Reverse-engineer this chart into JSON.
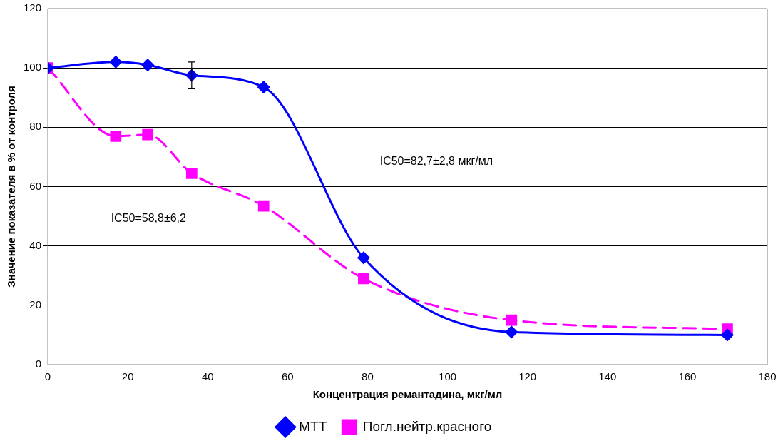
{
  "chart_data": {
    "type": "line",
    "xlabel": "Концентрация ремантадина, мкг/мл",
    "ylabel": "Значение показателя в % от контроля",
    "x": [
      0,
      17,
      25,
      36,
      54,
      79,
      116,
      170
    ],
    "series": [
      {
        "name": "МТТ",
        "color": "#0000ff",
        "values": [
          100,
          102,
          101,
          97.5,
          93.5,
          36,
          11,
          10
        ],
        "errors": [
          null,
          null,
          null,
          4.5,
          null,
          null,
          null,
          null
        ],
        "marker": "diamond",
        "line_style": "solid"
      },
      {
        "name": "Погл.нейтр.красного",
        "color": "#ff00ff",
        "values": [
          100,
          77,
          77.5,
          64.5,
          53.5,
          29,
          15,
          12
        ],
        "marker": "square",
        "line_style": "dashed"
      }
    ],
    "annotations": [
      "IC50=82,7±2,8 мкг/мл",
      "IC50=58,8±6,2"
    ],
    "xlim": [
      0,
      180
    ],
    "xticks": [
      0,
      20,
      40,
      60,
      80,
      100,
      120,
      140,
      160,
      180
    ],
    "ylim": [
      0,
      120
    ],
    "yticks": [
      0,
      20,
      40,
      60,
      80,
      100,
      120
    ],
    "grid": "y",
    "legend": "bottom"
  }
}
